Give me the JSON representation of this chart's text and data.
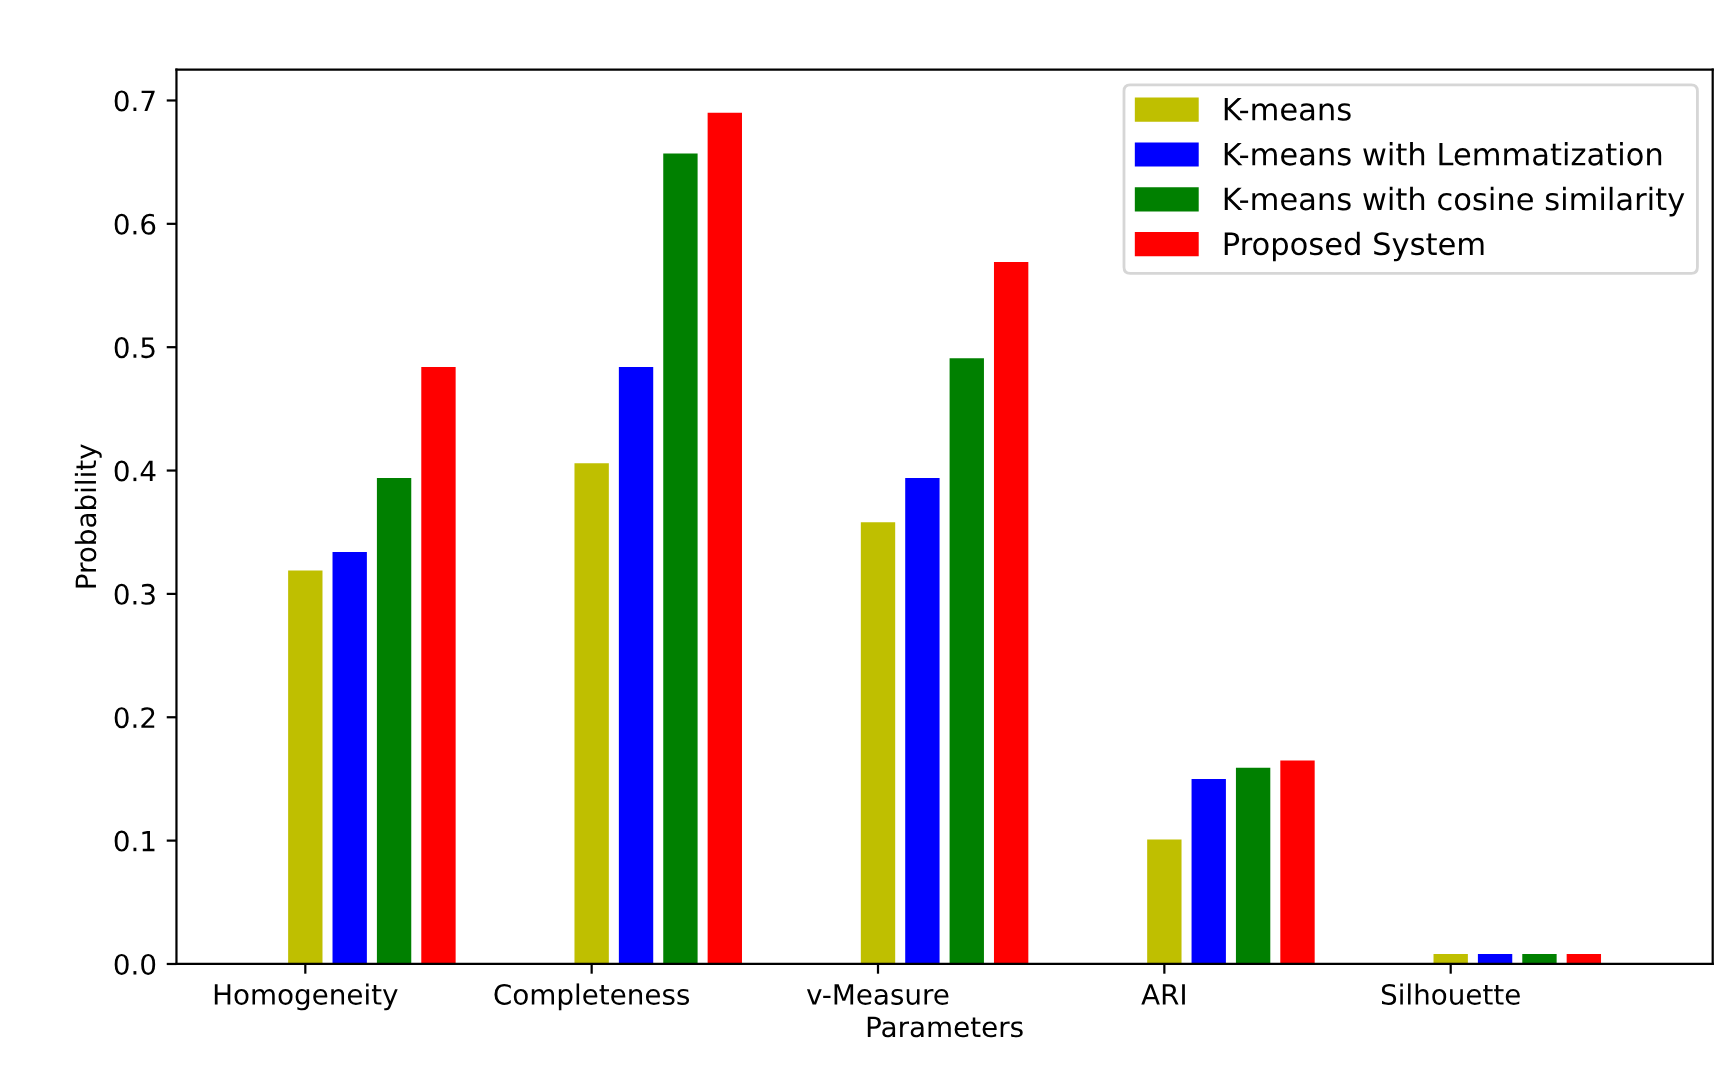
{
  "chart_data": {
    "type": "bar",
    "xlabel": "Parameters",
    "ylabel": "Probability",
    "categories": [
      "Homogeneity",
      "Completeness",
      "v-Measure",
      "ARI",
      "Silhouette"
    ],
    "series": [
      {
        "name": "K-means",
        "color": "#bfbf00",
        "values": [
          0.319,
          0.406,
          0.358,
          0.101,
          0.008
        ]
      },
      {
        "name": "K-means with Lemmatization",
        "color": "#0000ff",
        "values": [
          0.334,
          0.484,
          0.394,
          0.15,
          0.008
        ]
      },
      {
        "name": "K-means with cosine similarity",
        "color": "#008000",
        "values": [
          0.394,
          0.657,
          0.491,
          0.159,
          0.008
        ]
      },
      {
        "name": "Proposed System",
        "color": "#ff0000",
        "values": [
          0.484,
          0.69,
          0.569,
          0.165,
          0.008
        ]
      }
    ],
    "ylim": [
      0,
      0.725
    ],
    "yticks": [
      {
        "value": 0,
        "label": "0.0"
      },
      0.1,
      0.2,
      0.3,
      0.4,
      0.5,
      0.6,
      0.7
    ],
    "grid": false,
    "legend": "top right"
  }
}
